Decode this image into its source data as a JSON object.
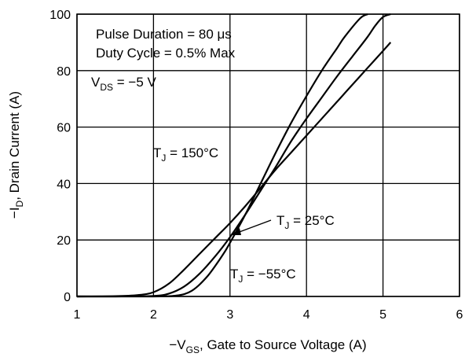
{
  "chart_data": {
    "type": "line",
    "xlabel": {
      "prefix": "−V",
      "sub": "GS",
      "suffix": ", Gate to Source Voltage (A)"
    },
    "ylabel": {
      "prefix": "−I",
      "sub": "D",
      "suffix": ", Drain Current (A)"
    },
    "xlim": [
      1,
      6
    ],
    "ylim": [
      0,
      100
    ],
    "xticks": [
      1,
      2,
      3,
      4,
      5,
      6
    ],
    "yticks": [
      0,
      20,
      40,
      60,
      80,
      100
    ],
    "grid": true,
    "annotations": {
      "pulse": "Pulse Duration = 80 μs",
      "duty": "Duty Cycle = 0.5% Max",
      "vds": {
        "prefix": "V",
        "sub": "DS",
        "suffix": " = −5 V"
      },
      "t150": {
        "prefix": "T",
        "sub": "J",
        "suffix": " = 150°C"
      },
      "t25": {
        "prefix": "T",
        "sub": "J",
        "suffix": " = 25°C"
      },
      "tm55": {
        "prefix": "T",
        "sub": "J",
        "suffix": " = −55°C"
      }
    },
    "series": [
      {
        "name": "T_J = 150°C",
        "x": [
          1.0,
          1.5,
          1.8,
          2.0,
          2.2,
          2.4,
          2.6,
          2.8,
          3.0,
          3.2,
          3.4,
          3.6,
          3.8,
          4.0,
          4.2,
          4.4,
          4.6,
          4.8,
          5.0,
          5.1
        ],
        "y": [
          0,
          0.1,
          0.5,
          1.5,
          4.5,
          9.5,
          15,
          20.5,
          26,
          32,
          38.5,
          45,
          51,
          57,
          63,
          69,
          75,
          81,
          87,
          90
        ]
      },
      {
        "name": "T_J = 25°C",
        "x": [
          1.0,
          1.5,
          2.0,
          2.2,
          2.4,
          2.6,
          2.8,
          3.0,
          3.2,
          3.4,
          3.6,
          3.8,
          4.0,
          4.2,
          4.4,
          4.6,
          4.8,
          4.9,
          5.0,
          5.1
        ],
        "y": [
          0,
          0,
          0.2,
          1,
          3.5,
          8,
          14,
          21,
          29,
          37.5,
          46,
          55,
          63,
          70.5,
          78,
          85,
          92,
          96,
          99,
          100
        ]
      },
      {
        "name": "T_J = −55°C",
        "x": [
          1.0,
          1.5,
          2.0,
          2.3,
          2.5,
          2.7,
          2.9,
          3.0,
          3.2,
          3.4,
          3.6,
          3.8,
          4.0,
          4.2,
          4.4,
          4.5,
          4.7,
          4.8
        ],
        "y": [
          0,
          0,
          0,
          0.3,
          2,
          7,
          14.5,
          19,
          29,
          40,
          51,
          61.5,
          71,
          80,
          88,
          92,
          98.5,
          100
        ]
      }
    ]
  }
}
